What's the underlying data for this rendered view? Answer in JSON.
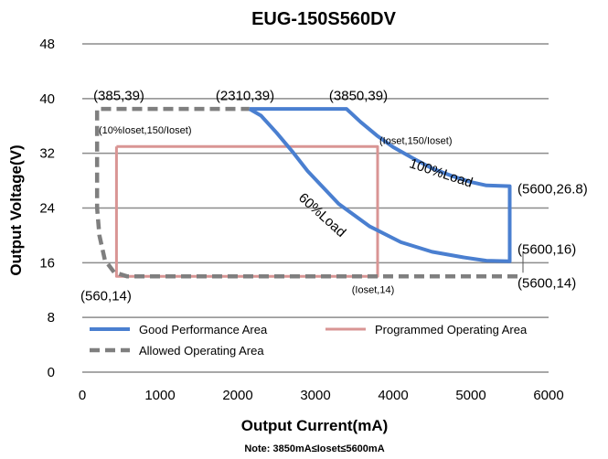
{
  "colors": {
    "good": "#4a7fd0",
    "programmed": "#d99594",
    "allowed": "#7f7f7f",
    "grid": "#8c8c8c"
  },
  "chart_data": {
    "type": "line",
    "title": "EUG-150S560DV",
    "xlabel": "Output Current(mA)",
    "ylabel": "Output Voltage(V)",
    "xlim": [
      0,
      6000
    ],
    "ylim": [
      0,
      48
    ],
    "x_ticks": [
      0,
      1000,
      2000,
      3000,
      4000,
      5000,
      6000
    ],
    "y_ticks": [
      0,
      8,
      16,
      24,
      32,
      40,
      48
    ],
    "grid": "horizontal",
    "legend_position": "bottom-inside",
    "note": "Note:  3850mA≤Ioset≤5600mA",
    "series": [
      {
        "name": "Good Performance Area",
        "style": "solid",
        "color": "#4a7fd0",
        "points": [
          [
            2150,
            38.5
          ],
          [
            3400,
            38.5
          ],
          [
            3580,
            36.6
          ],
          [
            3790,
            34.6
          ],
          [
            4000,
            32.9
          ],
          [
            4250,
            31.3
          ],
          [
            4500,
            29.8
          ],
          [
            4750,
            28.7
          ],
          [
            5000,
            27.8
          ],
          [
            5200,
            27.3
          ],
          [
            5500,
            27.2
          ],
          [
            5500,
            16.2
          ],
          [
            5200,
            16.3
          ],
          [
            4900,
            16.8
          ],
          [
            4500,
            17.6
          ],
          [
            4100,
            19.0
          ],
          [
            3700,
            21.3
          ],
          [
            3300,
            24.6
          ],
          [
            2900,
            29.4
          ],
          [
            2700,
            32.3
          ],
          [
            2500,
            35.0
          ],
          [
            2300,
            37.5
          ],
          [
            2150,
            38.5
          ]
        ]
      },
      {
        "name": "Programmed Operating Area",
        "style": "solid",
        "color": "#d99594",
        "points": [
          [
            440,
            33
          ],
          [
            3800,
            33
          ],
          [
            3800,
            14
          ],
          [
            440,
            14
          ],
          [
            440,
            33
          ]
        ]
      },
      {
        "name": "Allowed Operating Area",
        "style": "dashed",
        "color": "#7f7f7f",
        "points": [
          [
            5600,
            14
          ],
          [
            580,
            14
          ],
          [
            410,
            14.6
          ],
          [
            290,
            16.4
          ],
          [
            220,
            20
          ],
          [
            190,
            24
          ],
          [
            190,
            38.5
          ],
          [
            2150,
            38.5
          ]
        ]
      }
    ],
    "annotations": [
      {
        "text": "(385,39)",
        "x": 385,
        "y": 39,
        "size": "normal"
      },
      {
        "text": "(2310,39)",
        "x": 2310,
        "y": 39,
        "size": "normal"
      },
      {
        "text": "(3850,39)",
        "x": 3850,
        "y": 39,
        "size": "normal"
      },
      {
        "text": "(10%Ioset,150/Ioset)",
        "x": 440,
        "y": 33,
        "size": "small"
      },
      {
        "text": "(Ioset,150/Ioset)",
        "x": 3850,
        "y": 32,
        "size": "small"
      },
      {
        "text": "(5600,26.8)",
        "x": 5600,
        "y": 26.8,
        "size": "normal"
      },
      {
        "text": "(5600,16)",
        "x": 5600,
        "y": 16,
        "size": "normal"
      },
      {
        "text": "(5600,14)",
        "x": 5600,
        "y": 14,
        "size": "normal"
      },
      {
        "text": "(560,14)",
        "x": 560,
        "y": 14,
        "size": "normal"
      },
      {
        "text": "(Ioset,14)",
        "x": 3800,
        "y": 14,
        "size": "small"
      },
      {
        "text": "100%Load",
        "x": 4600,
        "y": 28.5,
        "size": "normal",
        "rotate": 18
      },
      {
        "text": "60%Load",
        "x": 3050,
        "y": 22.5,
        "size": "normal",
        "rotate": 42
      }
    ]
  }
}
